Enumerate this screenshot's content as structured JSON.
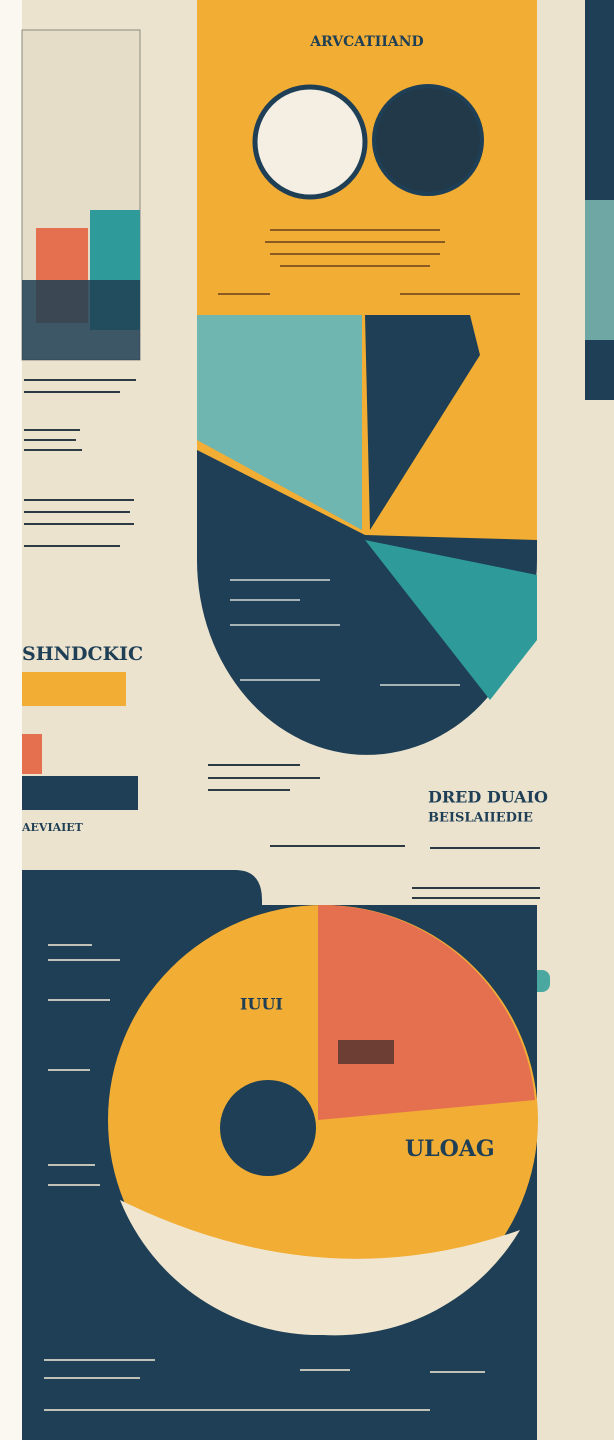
{
  "poster": {
    "title": "ARVCATIIAND",
    "left_heading": "SHNDCKIC",
    "left_sub": "AEVIAIET",
    "right_heading": "DRED DUAIO",
    "right_sub": "BEISLAIIEDIE",
    "pie_label": "ULOAG",
    "pie_sub": "IUUI"
  }
}
